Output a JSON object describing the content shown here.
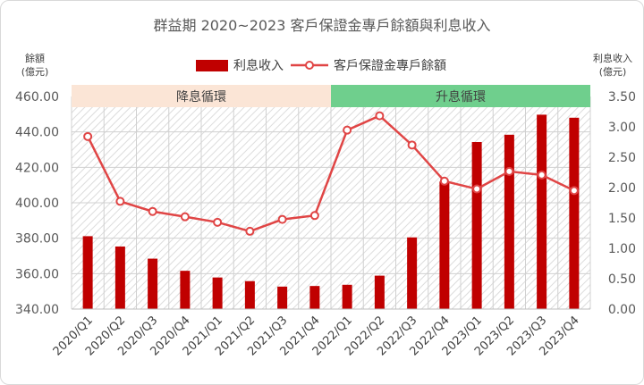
{
  "chart_data": {
    "type": "bar+line",
    "title": "群益期 2020~2023 客戶保證金專戶餘額與利息收入",
    "left_axis_label_lines": [
      "餘額",
      "(億元)"
    ],
    "right_axis_label_lines": [
      "利息收入",
      "(億元)"
    ],
    "categories": [
      "2020/Q1",
      "2020/Q2",
      "2020/Q3",
      "2020/Q4",
      "2021/Q1",
      "2021/Q2",
      "2021/Q3",
      "2021/Q4",
      "2022/Q1",
      "2022/Q2",
      "2022/Q3",
      "2022/Q4",
      "2023/Q1",
      "2023/Q2",
      "2023/Q3",
      "2023/Q4"
    ],
    "left_ticks": [
      "340.00",
      "360.00",
      "380.00",
      "400.00",
      "420.00",
      "440.00",
      "460.00"
    ],
    "right_ticks": [
      "0.00",
      "0.50",
      "1.00",
      "1.50",
      "2.00",
      "2.50",
      "3.00",
      "3.50"
    ],
    "ylim_left": [
      340,
      460
    ],
    "ylim_right": [
      0,
      3.5
    ],
    "series": [
      {
        "name": "利息收入",
        "kind": "bar",
        "axis": "right",
        "color": "#c00000",
        "values": [
          1.2,
          1.03,
          0.83,
          0.63,
          0.52,
          0.46,
          0.37,
          0.38,
          0.4,
          0.55,
          1.18,
          2.1,
          2.75,
          2.87,
          3.2,
          3.15
        ]
      },
      {
        "name": "客戶保證金專戶餘額",
        "kind": "line",
        "axis": "left",
        "color": "#e04545",
        "values": [
          437.4,
          400.8,
          395.1,
          392.1,
          389.0,
          383.9,
          390.6,
          392.8,
          441.0,
          449.1,
          432.6,
          412.2,
          407.8,
          417.7,
          415.7,
          406.9
        ]
      }
    ],
    "bands": [
      {
        "label": "降息循環",
        "from": "2020/Q1",
        "to": "2021/Q4",
        "color": "#fbe5d6"
      },
      {
        "label": "升息循環",
        "from": "2022/Q1",
        "to": "2023/Q4",
        "color": "#6fcf8d"
      }
    ],
    "grid": true,
    "legend": "top-center"
  }
}
